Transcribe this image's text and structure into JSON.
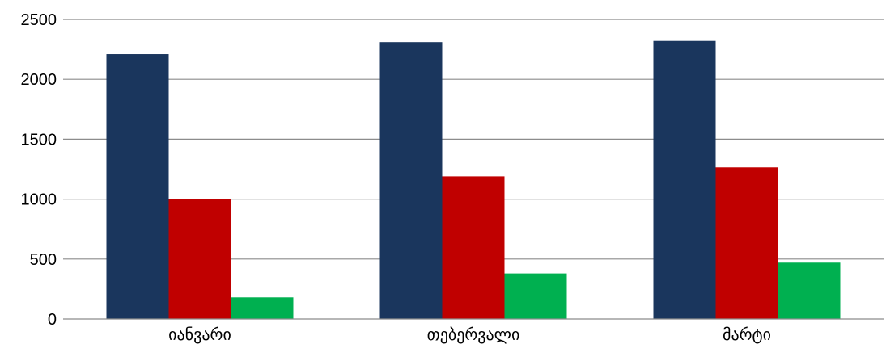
{
  "chart_data": {
    "type": "bar",
    "categories": [
      "იანვარი",
      "თებერვალი",
      "მარტი"
    ],
    "series": [
      {
        "values": [
          2210,
          2310,
          2320
        ],
        "color": "#1a365d"
      },
      {
        "values": [
          1000,
          1190,
          1265
        ],
        "color": "#c00000"
      },
      {
        "values": [
          180,
          380,
          470
        ],
        "color": "#00b050"
      }
    ],
    "ylim": [
      0,
      2500
    ],
    "yticks": [
      0,
      500,
      1000,
      1500,
      2000,
      2500
    ],
    "grid": true,
    "legend": "none"
  }
}
